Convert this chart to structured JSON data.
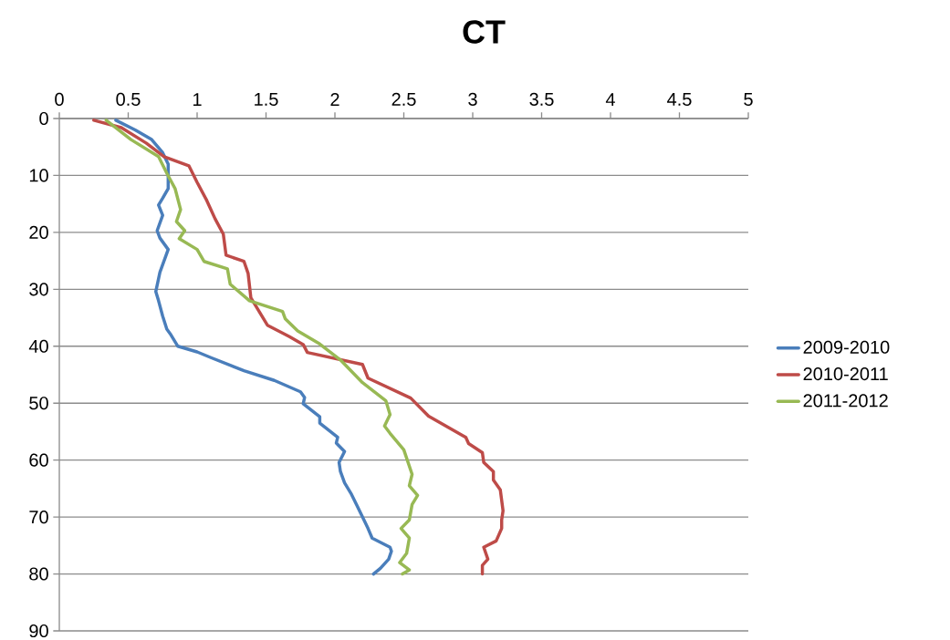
{
  "chart_data": {
    "type": "line",
    "title": "CT",
    "xlim": [
      0,
      5
    ],
    "xticks": [
      0,
      0.5,
      1,
      1.5,
      2,
      2.5,
      3,
      3.5,
      4,
      4.5,
      5
    ],
    "ylim": [
      90,
      0
    ],
    "yticks": [
      0,
      10,
      20,
      30,
      40,
      50,
      60,
      70,
      80,
      90
    ],
    "grid": "y",
    "legend": "right",
    "line_style": "solid",
    "series": [
      {
        "name": "2009-2010",
        "color": "#4a7ebb",
        "x": [
          0.41,
          0.55,
          0.67,
          0.75,
          0.79,
          0.79,
          0.75,
          0.72,
          0.75,
          0.71,
          0.73,
          0.79,
          0.76,
          0.73,
          0.7,
          0.72,
          0.75,
          0.78,
          0.81,
          0.86,
          1.0,
          1.1,
          1.34,
          1.56,
          1.75,
          1.78,
          1.77,
          1.89,
          1.89,
          2.02,
          2.01,
          2.07,
          2.03,
          2.04,
          2.07,
          2.12,
          2.16,
          2.2,
          2.24,
          2.27,
          2.4,
          2.41,
          2.39,
          2.33,
          2.28
        ],
        "values": [
          0.3,
          2,
          3.7,
          6,
          8,
          12.3,
          14,
          15.2,
          17,
          19.7,
          21,
          23,
          25,
          27,
          30.4,
          32,
          34.7,
          37,
          38,
          40,
          41,
          42,
          44.3,
          46,
          48,
          49,
          50.1,
          52.4,
          53.5,
          56,
          57,
          58.5,
          60.4,
          62,
          64,
          66,
          68,
          70,
          72,
          73.7,
          75.3,
          76,
          77.4,
          79,
          80
        ]
      },
      {
        "name": "2010-2011",
        "color": "#be4b48",
        "x": [
          0.25,
          0.45,
          0.63,
          0.76,
          0.94,
          1.0,
          1.07,
          1.13,
          1.19,
          1.21,
          1.34,
          1.37,
          1.39,
          1.51,
          1.67,
          1.77,
          1.8,
          2.2,
          2.24,
          2.55,
          2.68,
          2.95,
          2.97,
          3.07,
          3.08,
          3.15,
          3.15,
          3.2,
          3.22,
          3.21,
          3.21,
          3.17,
          3.08,
          3.11,
          3.07,
          3.07
        ],
        "values": [
          0.3,
          1.6,
          4.3,
          6.7,
          8.3,
          11.2,
          14.4,
          17.6,
          20.3,
          24,
          25.1,
          27.2,
          31.5,
          36.3,
          38.3,
          39.7,
          41.1,
          43.2,
          45.6,
          49.1,
          52.3,
          56,
          57.1,
          58.7,
          60.4,
          62,
          63.5,
          65.2,
          68.9,
          70.5,
          72,
          74.2,
          75.3,
          77.4,
          78.5,
          80
        ]
      },
      {
        "name": "2011-2012",
        "color": "#98b954",
        "x": [
          0.34,
          0.52,
          0.72,
          0.78,
          0.84,
          0.88,
          0.85,
          0.91,
          0.87,
          1.0,
          1.05,
          1.22,
          1.24,
          1.38,
          1.62,
          1.64,
          1.73,
          1.89,
          2.04,
          2.2,
          2.37,
          2.4,
          2.36,
          2.4,
          2.5,
          2.56,
          2.54,
          2.6,
          2.56,
          2.54,
          2.48,
          2.54,
          2.52,
          2.47,
          2.54,
          2.49
        ],
        "values": [
          0.3,
          3.7,
          6.7,
          9.6,
          12.3,
          16,
          18.1,
          19.7,
          21.1,
          23,
          25.1,
          26.4,
          29.1,
          32,
          33.9,
          35.2,
          37.3,
          39.6,
          42.4,
          46.4,
          49.6,
          52,
          54,
          55.3,
          58.2,
          62.5,
          64.5,
          66.2,
          67.8,
          70.5,
          72,
          73.7,
          76.4,
          78,
          79.3,
          80
        ]
      }
    ]
  }
}
